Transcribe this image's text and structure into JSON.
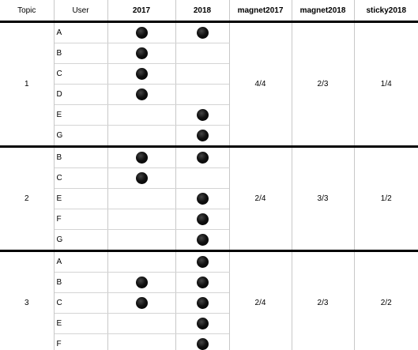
{
  "headers": {
    "topic": "Topic",
    "user": "User",
    "y2017": "2017",
    "y2018": "2018",
    "magnet2017": "magnet2017",
    "magnet2018": "magnet2018",
    "sticky2018": "sticky2018"
  },
  "marker_icon": "filled-black-circle",
  "groups": [
    {
      "topic": "1",
      "magnet2017": "4/4",
      "magnet2018": "2/3",
      "sticky2018": "1/4",
      "rows": [
        {
          "user": "A",
          "y2017": true,
          "y2018": true
        },
        {
          "user": "B",
          "y2017": true,
          "y2018": false
        },
        {
          "user": "C",
          "y2017": true,
          "y2018": false
        },
        {
          "user": "D",
          "y2017": true,
          "y2018": false
        },
        {
          "user": "E",
          "y2017": false,
          "y2018": true
        },
        {
          "user": "G",
          "y2017": false,
          "y2018": true
        }
      ]
    },
    {
      "topic": "2",
      "magnet2017": "2/4",
      "magnet2018": "3/3",
      "sticky2018": "1/2",
      "rows": [
        {
          "user": "B",
          "y2017": true,
          "y2018": true
        },
        {
          "user": "C",
          "y2017": true,
          "y2018": false
        },
        {
          "user": "E",
          "y2017": false,
          "y2018": true
        },
        {
          "user": "F",
          "y2017": false,
          "y2018": true
        },
        {
          "user": "G",
          "y2017": false,
          "y2018": true
        }
      ]
    },
    {
      "topic": "3",
      "magnet2017": "2/4",
      "magnet2018": "2/3",
      "sticky2018": "2/2",
      "rows": [
        {
          "user": "A",
          "y2017": false,
          "y2018": true
        },
        {
          "user": "B",
          "y2017": true,
          "y2018": true
        },
        {
          "user": "C",
          "y2017": true,
          "y2018": true
        },
        {
          "user": "E",
          "y2017": false,
          "y2018": true
        },
        {
          "user": "F",
          "y2017": false,
          "y2018": true
        }
      ]
    }
  ]
}
